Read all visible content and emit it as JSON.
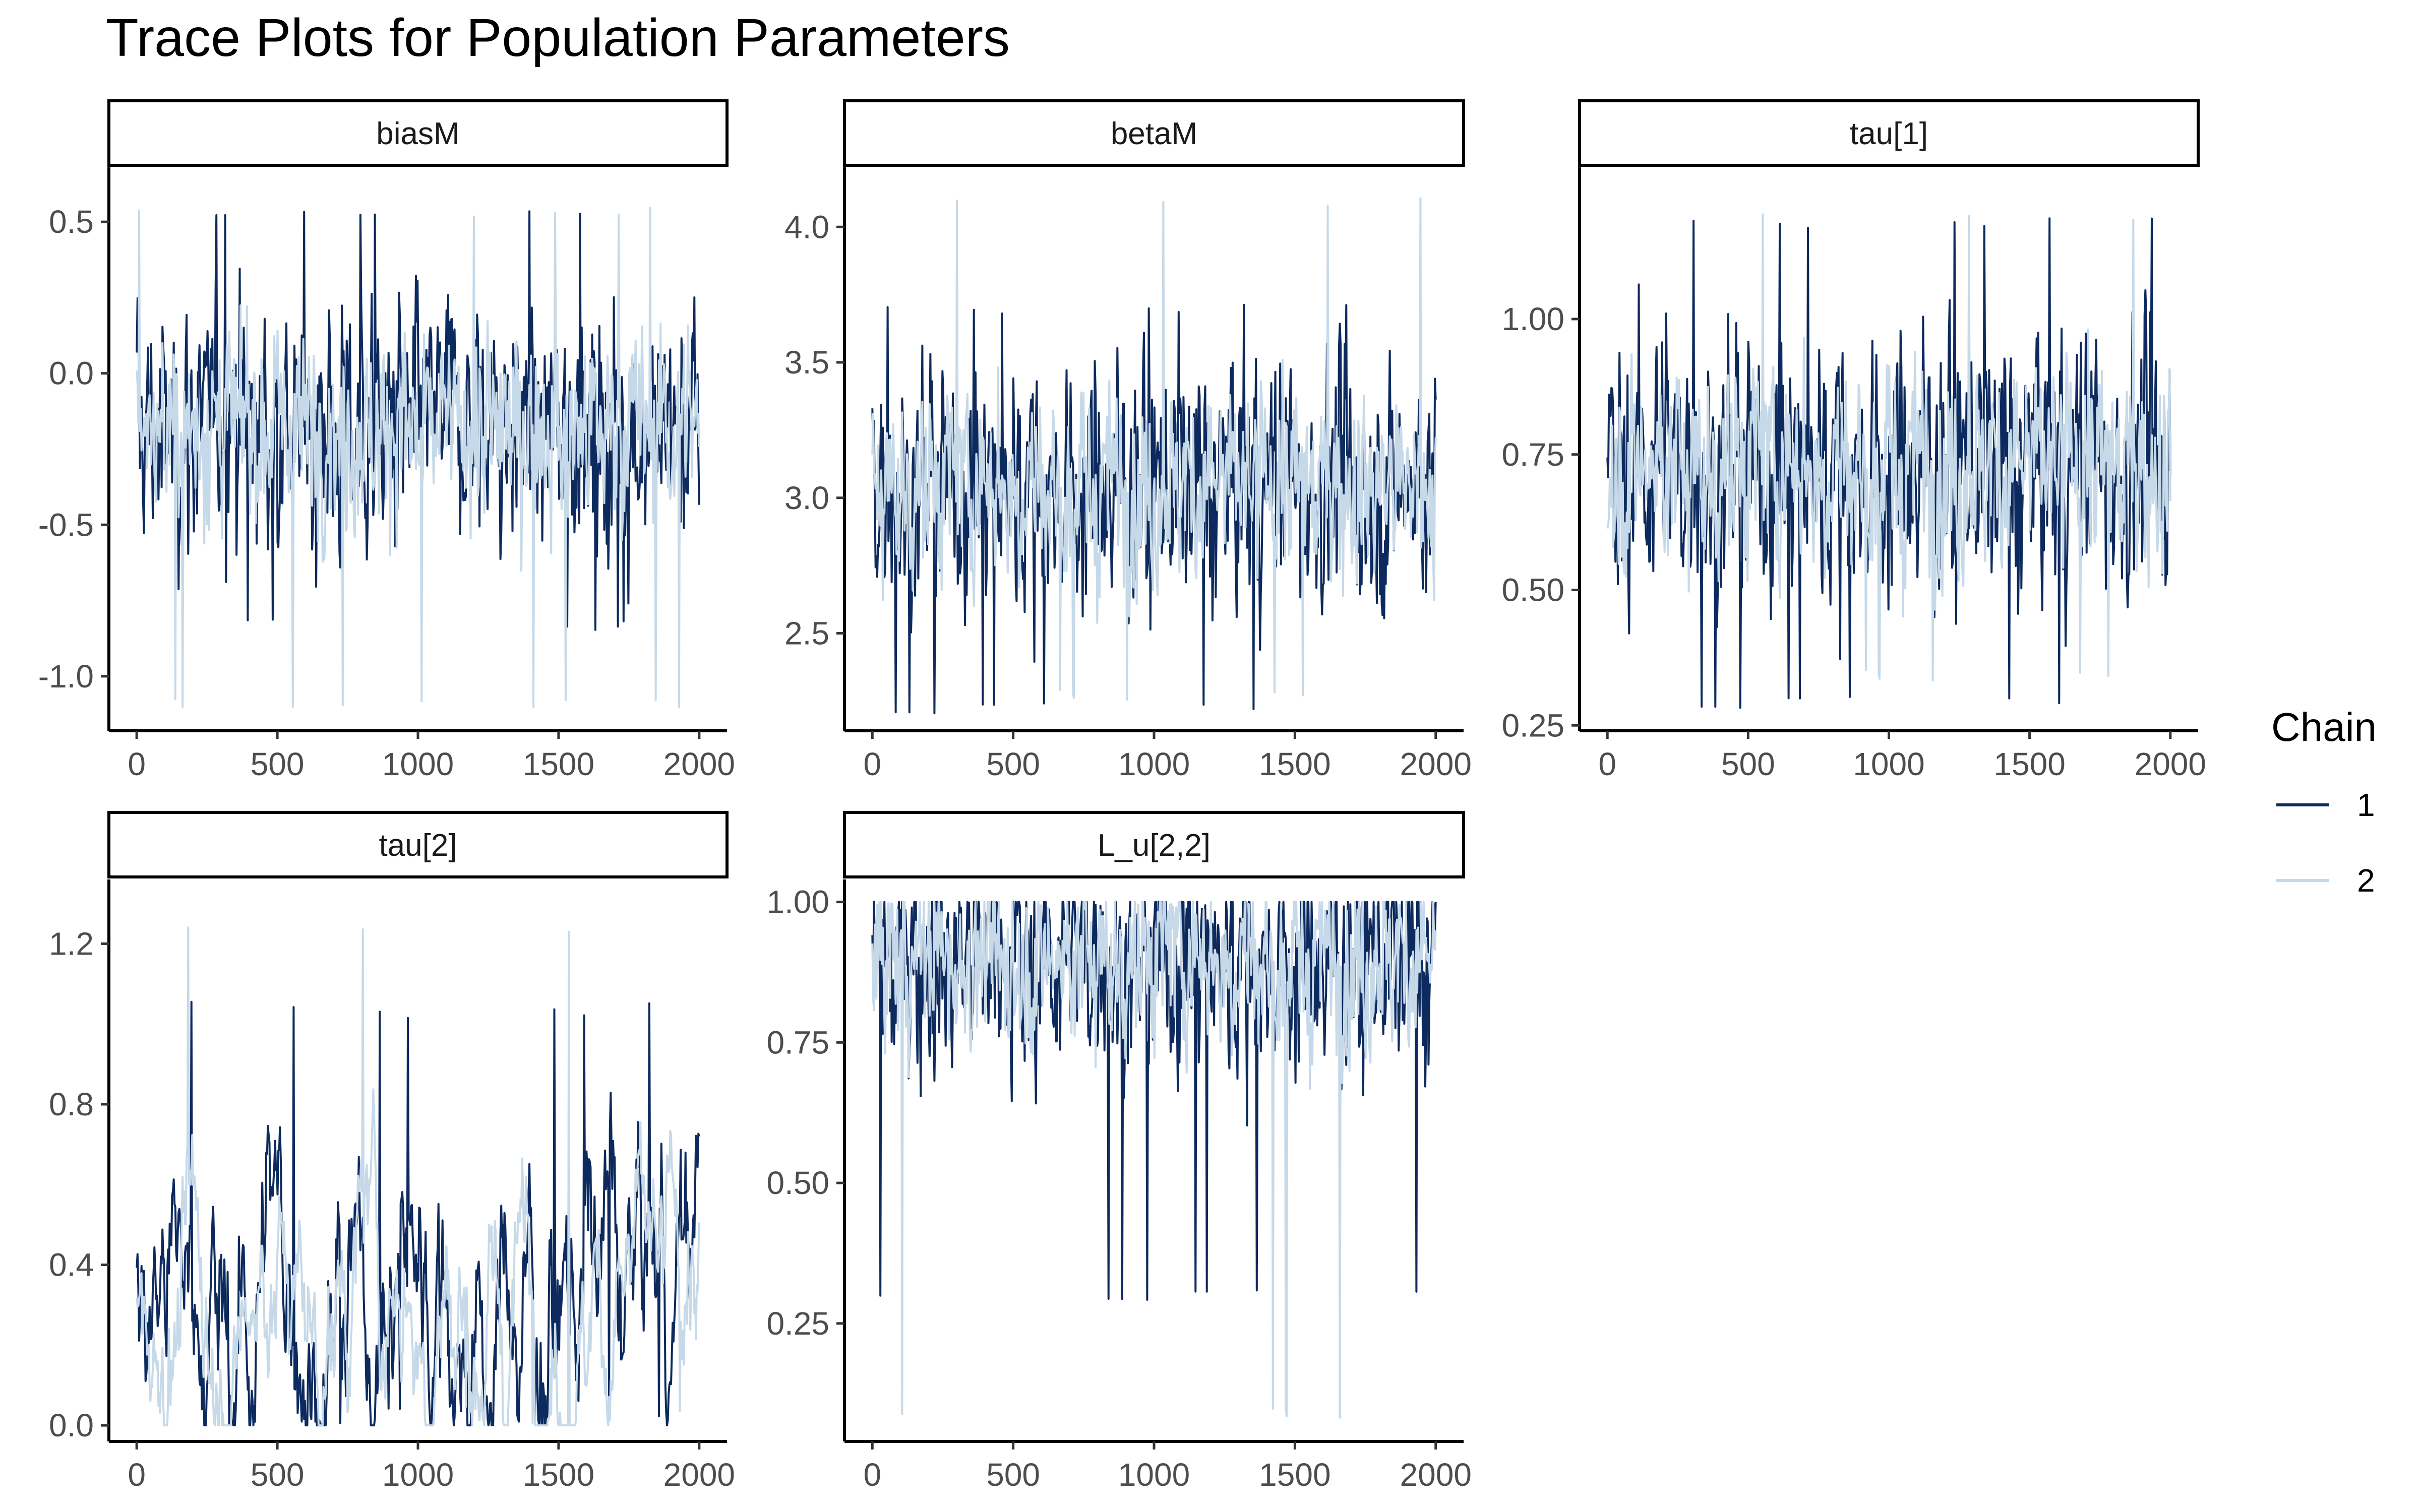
{
  "title": "Trace Plots for Population Parameters",
  "legend": {
    "title": "Chain",
    "placement": "right",
    "entries": [
      {
        "label": "1",
        "color": "#0d2a5e"
      },
      {
        "label": "2",
        "color": "#c6d9e8"
      }
    ]
  },
  "chart_data": [
    {
      "type": "line",
      "facet": "biasM",
      "xlim": [
        0,
        2000
      ],
      "xticks": [
        0,
        500,
        1000,
        1500,
        2000
      ],
      "ylim": [
        -1.18,
        0.68
      ],
      "yticks": [
        -1.0,
        -0.5,
        0.0,
        0.5
      ],
      "ytick_labels": [
        "-1.0",
        "-0.5",
        "0.0",
        "0.5"
      ],
      "center": -0.18,
      "spread": 0.19,
      "series": [
        {
          "name": "1",
          "min": -0.85,
          "max": 0.54
        },
        {
          "name": "2",
          "min": -1.11,
          "max": 0.55
        }
      ]
    },
    {
      "type": "line",
      "facet": "betaM",
      "xlim": [
        0,
        2000
      ],
      "xticks": [
        0,
        500,
        1000,
        1500,
        2000
      ],
      "ylim": [
        2.14,
        4.22
      ],
      "yticks": [
        2.5,
        3.0,
        3.5,
        4.0
      ],
      "ytick_labels": [
        "2.5",
        "3.0",
        "3.5",
        "4.0"
      ],
      "center": 3.05,
      "spread": 0.22,
      "series": [
        {
          "name": "1",
          "min": 2.2,
          "max": 3.72
        },
        {
          "name": "2",
          "min": 2.25,
          "max": 4.11
        }
      ]
    },
    {
      "type": "line",
      "facet": "tau[1]",
      "xlim": [
        0,
        2000
      ],
      "xticks": [
        0,
        500,
        1000,
        1500,
        2000
      ],
      "ylim": [
        0.24,
        1.28
      ],
      "yticks": [
        0.25,
        0.5,
        0.75,
        1.0
      ],
      "ytick_labels": [
        "0.25",
        "0.50",
        "0.75",
        "1.00"
      ],
      "center": 0.73,
      "spread": 0.12,
      "series": [
        {
          "name": "1",
          "min": 0.28,
          "max": 1.19
        },
        {
          "name": "2",
          "min": 0.33,
          "max": 1.2
        }
      ]
    },
    {
      "type": "line",
      "facet": "tau[2]",
      "xlim": [
        0,
        2000
      ],
      "xticks": [
        0,
        500,
        1000,
        1500,
        2000
      ],
      "ylim": [
        -0.04,
        1.36
      ],
      "yticks": [
        0.0,
        0.4,
        0.8,
        1.2
      ],
      "ytick_labels": [
        "0.0",
        "0.4",
        "0.8",
        "1.2"
      ],
      "center": 0.35,
      "spread": 0.25,
      "series": [
        {
          "name": "1",
          "min": 0.0,
          "max": 1.06
        },
        {
          "name": "2",
          "min": 0.0,
          "max": 1.25
        }
      ]
    },
    {
      "type": "line",
      "facet": "L_u[2,2]",
      "xlim": [
        0,
        2000
      ],
      "xticks": [
        0,
        500,
        1000,
        1500,
        2000
      ],
      "ylim": [
        0.04,
        1.04
      ],
      "yticks": [
        0.25,
        0.5,
        0.75,
        1.0
      ],
      "ytick_labels": [
        "0.25",
        "0.50",
        "0.75",
        "1.00"
      ],
      "center": 0.9,
      "spread": 0.1,
      "series": [
        {
          "name": "1",
          "min": 0.29,
          "max": 1.0
        },
        {
          "name": "2",
          "min": 0.08,
          "max": 1.0
        }
      ]
    }
  ]
}
